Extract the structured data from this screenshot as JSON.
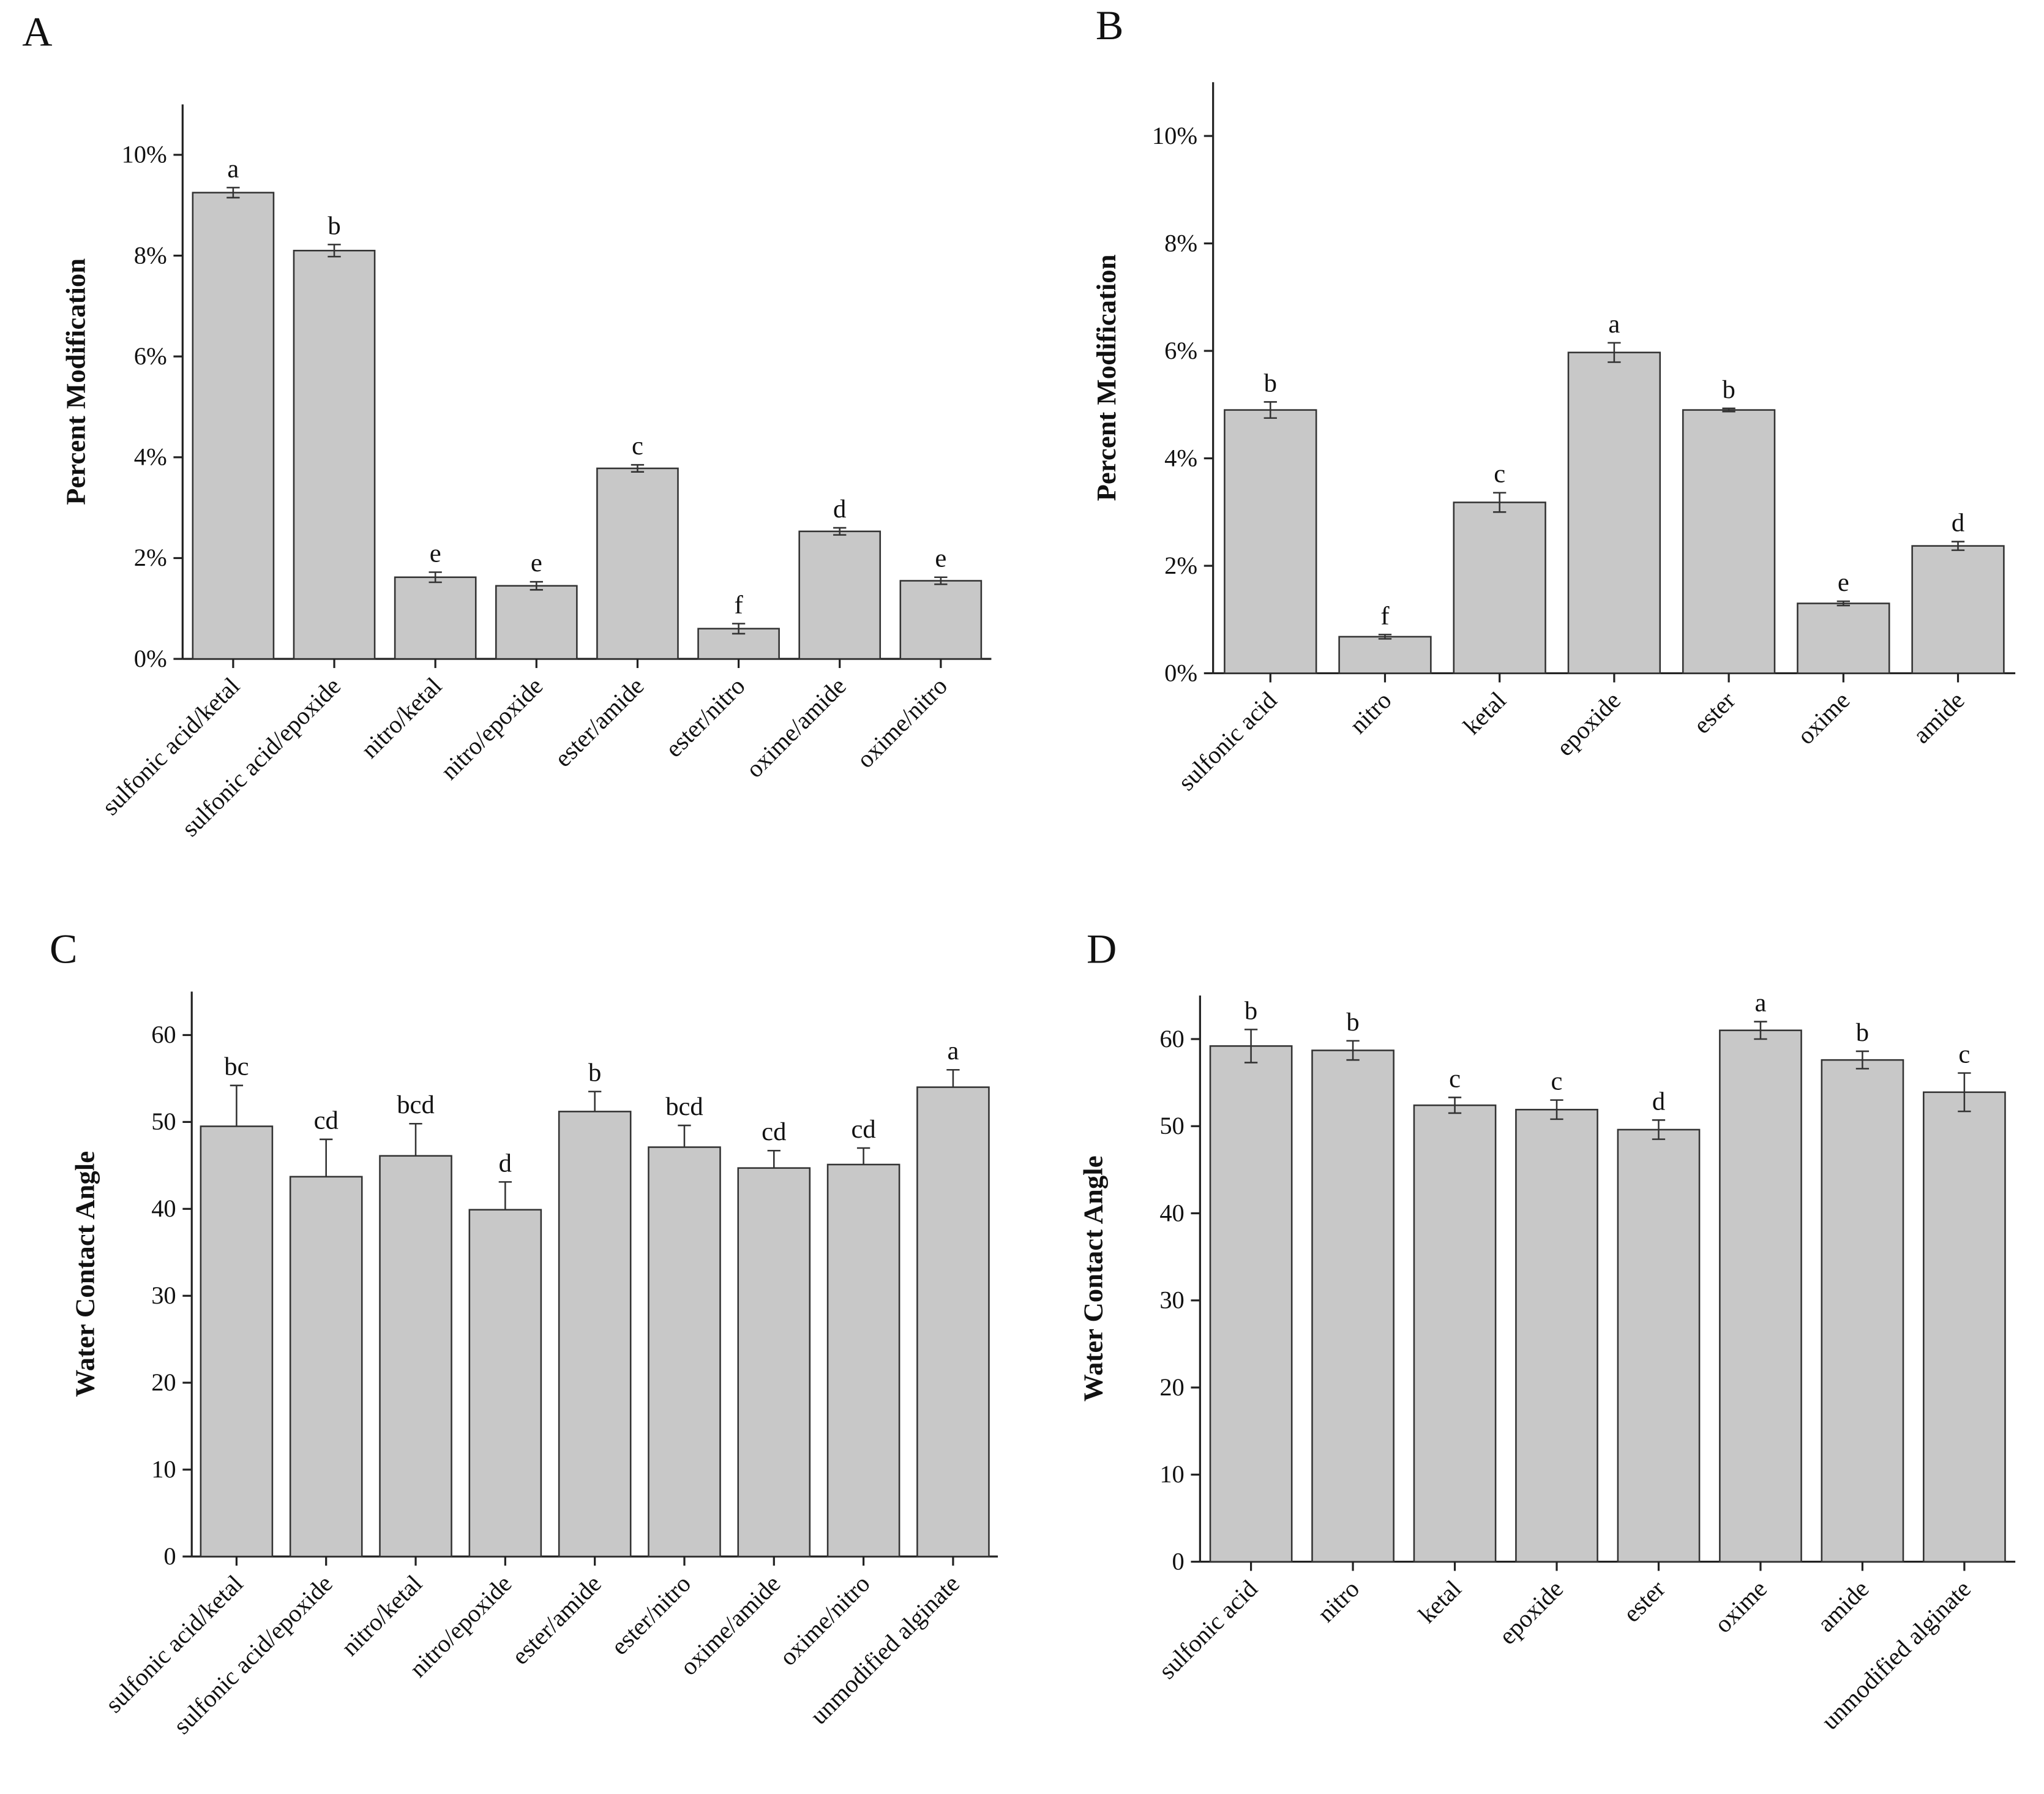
{
  "chart_data": [
    {
      "type": "bar",
      "panel": "A",
      "ylabel": "Percent Modification",
      "categories": [
        "sulfonic acid/ketal",
        "sulfonic acid/epoxide",
        "nitro/ketal",
        "nitro/epoxide",
        "ester/amide",
        "ester/nitro",
        "oxime/amide",
        "oxime/nitro"
      ],
      "values": [
        9.25,
        8.1,
        1.62,
        1.45,
        3.78,
        0.6,
        2.53,
        1.55
      ],
      "errors": [
        0.1,
        0.12,
        0.1,
        0.08,
        0.07,
        0.1,
        0.07,
        0.07
      ],
      "error_direction": "both",
      "letters": [
        "a",
        "b",
        "e",
        "e",
        "c",
        "f",
        "d",
        "e"
      ],
      "color": "#c8c8c8",
      "ylim": [
        0,
        11
      ],
      "yticks": [
        {
          "value": 0,
          "label": "0%"
        },
        {
          "value": 2,
          "label": "2%"
        },
        {
          "value": 4,
          "label": "4%"
        },
        {
          "value": 6,
          "label": "6%"
        },
        {
          "value": 8,
          "label": "8%"
        },
        {
          "value": 10,
          "label": "10%"
        }
      ]
    },
    {
      "type": "bar",
      "panel": "B",
      "ylabel": "Percent Modification",
      "categories": [
        "sulfonic acid",
        "nitro",
        "ketal",
        "epoxide",
        "ester",
        "oxime",
        "amide"
      ],
      "values": [
        4.9,
        0.68,
        3.18,
        5.97,
        4.9,
        1.3,
        2.37
      ],
      "errors": [
        0.15,
        0.04,
        0.18,
        0.18,
        0.03,
        0.04,
        0.08
      ],
      "error_direction": "both",
      "letters": [
        "b",
        "f",
        "c",
        "a",
        "b",
        "e",
        "d"
      ],
      "color": "#c8c8c8",
      "ylim": [
        0,
        11
      ],
      "yticks": [
        {
          "value": 0,
          "label": "0%"
        },
        {
          "value": 2,
          "label": "2%"
        },
        {
          "value": 4,
          "label": "4%"
        },
        {
          "value": 6,
          "label": "6%"
        },
        {
          "value": 8,
          "label": "8%"
        },
        {
          "value": 10,
          "label": "10%"
        }
      ]
    },
    {
      "type": "bar",
      "panel": "C",
      "ylabel": "Water Contact Angle",
      "categories": [
        "sulfonic acid/ketal",
        "sulfonic acid/epoxide",
        "nitro/ketal",
        "nitro/epoxide",
        "ester/amide",
        "ester/nitro",
        "oxime/amide",
        "oxime/nitro",
        "unmodified alginate"
      ],
      "values": [
        49.5,
        43.7,
        46.1,
        39.9,
        51.2,
        47.1,
        44.7,
        45.1,
        54.0
      ],
      "errors": [
        4.7,
        4.3,
        3.7,
        3.2,
        2.3,
        2.5,
        2.0,
        1.9,
        2.0
      ],
      "error_direction": "up",
      "letters": [
        "bc",
        "cd",
        "bcd",
        "d",
        "b",
        "bcd",
        "cd",
        "cd",
        "a"
      ],
      "color": "#c8c8c8",
      "ylim": [
        0,
        65
      ],
      "yticks": [
        0,
        10,
        20,
        30,
        40,
        50,
        60
      ]
    },
    {
      "type": "bar",
      "panel": "D",
      "ylabel": "Water Contact Angle",
      "categories": [
        "sulfonic acid",
        "nitro",
        "ketal",
        "epoxide",
        "ester",
        "oxime",
        "amide",
        "unmodified alginate"
      ],
      "values": [
        59.2,
        58.7,
        52.4,
        51.9,
        49.6,
        61.0,
        57.6,
        53.9
      ],
      "errors": [
        1.9,
        1.1,
        0.9,
        1.1,
        1.1,
        1.0,
        1.0,
        2.2
      ],
      "error_direction": "both",
      "letters": [
        "b",
        "b",
        "c",
        "c",
        "d",
        "a",
        "b",
        "c"
      ],
      "color": "#c8c8c8",
      "ylim": [
        0,
        65
      ],
      "yticks": [
        0,
        10,
        20,
        30,
        40,
        50,
        60
      ]
    }
  ]
}
